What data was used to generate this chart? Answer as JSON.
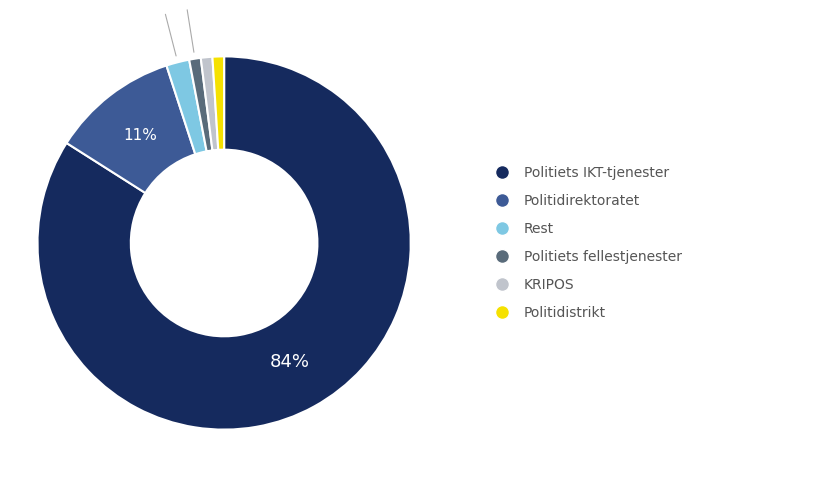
{
  "labels": [
    "Politiets IKT-tjenester",
    "Politidirektoratet",
    "Rest",
    "Politiets fellestjenester",
    "KRIPOS",
    "Politidistrikt"
  ],
  "values": [
    84,
    11,
    2,
    1,
    1,
    1
  ],
  "colors": [
    "#152a5e",
    "#3d5a96",
    "#7ec8e3",
    "#596b7a",
    "#c0c4cc",
    "#f5e100"
  ],
  "background_color": "#ffffff",
  "wedge_edge_color": "#ffffff"
}
